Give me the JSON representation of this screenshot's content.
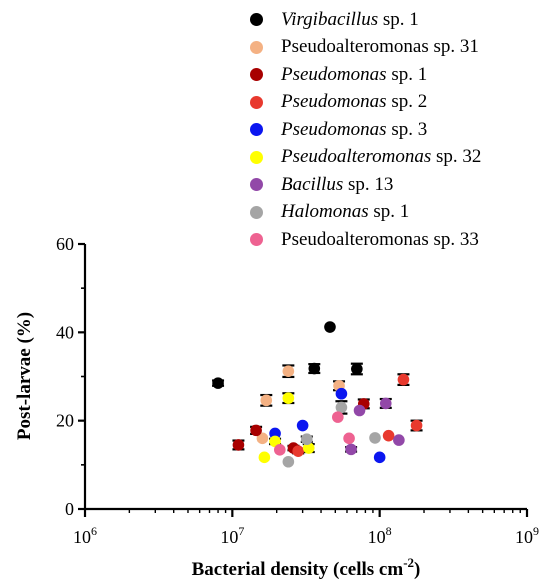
{
  "chart_data": {
    "type": "scatter",
    "xlabel": "Bacterial density (cells cm",
    "xlabel_sup": "-2",
    "xlabel_close": ")",
    "ylabel": "Post-larvae  (%)",
    "x_scale": "log",
    "xlim": [
      1000000,
      1000000000
    ],
    "ylim": [
      0,
      60
    ],
    "yticks": [
      0,
      20,
      40,
      60
    ],
    "ytick_labels": [
      "0",
      "20",
      "40",
      "60"
    ],
    "xtick_labels": [
      {
        "base": "10",
        "exp": "6"
      },
      {
        "base": "10",
        "exp": "7"
      },
      {
        "base": "10",
        "exp": "8"
      },
      {
        "base": "10",
        "exp": "9"
      }
    ],
    "grid": false,
    "legend_position": "top-right",
    "series": [
      {
        "name": "Virgibacillus",
        "name_suffix": " sp. 1",
        "italic": true,
        "color": "#000000",
        "points": [
          [
            8000000,
            28.5,
            0.6
          ],
          [
            36000000,
            31.8,
            1.0
          ],
          [
            46000000,
            41.2,
            0
          ],
          [
            70000000,
            31.7,
            1.2
          ]
        ]
      },
      {
        "name": "Pseudoalteromonas sp. 31",
        "name_suffix": "",
        "italic": false,
        "color": "#F4B183",
        "points": [
          [
            16000000,
            16.0,
            0
          ],
          [
            17000000,
            24.6,
            1.2
          ],
          [
            24000000,
            31.2,
            1.3
          ],
          [
            53000000,
            27.9,
            1.0
          ]
        ]
      },
      {
        "name": "Pseudomonas",
        "name_suffix": " sp. 1",
        "italic": true,
        "color": "#A80000",
        "points": [
          [
            11000000,
            14.5,
            1.0
          ],
          [
            14500000,
            17.8,
            0.8
          ],
          [
            26000000,
            13.8,
            0.5
          ],
          [
            78000000,
            23.8,
            1.0
          ]
        ]
      },
      {
        "name": "Pseudomonas",
        "name_suffix": " sp. 2",
        "italic": true,
        "color": "#E8392E",
        "points": [
          [
            28000000,
            13.1,
            0.5
          ],
          [
            115000000,
            16.6,
            0
          ],
          [
            145000000,
            29.3,
            1.2
          ],
          [
            178000000,
            18.9,
            1.1
          ]
        ]
      },
      {
        "name": "Pseudomonas",
        "name_suffix": " sp. 3",
        "italic": true,
        "color": "#0B16F0",
        "points": [
          [
            19500000,
            17.1,
            0
          ],
          [
            30000000,
            18.9,
            0
          ],
          [
            55000000,
            26.1,
            0
          ],
          [
            100000000,
            11.7,
            0
          ]
        ]
      },
      {
        "name": "Pseudoalteromonas",
        "name_suffix": " sp. 32",
        "italic": true,
        "color": "#FFFF00",
        "points": [
          [
            16500000,
            11.7,
            0
          ],
          [
            19500000,
            15.3,
            0.6
          ],
          [
            24000000,
            25.1,
            1.1
          ],
          [
            33000000,
            13.8,
            0.9
          ]
        ]
      },
      {
        "name": "Bacillus",
        "name_suffix": " sp. 13",
        "italic": true,
        "color": "#9248A8",
        "points": [
          [
            64000000,
            13.5,
            0.5
          ],
          [
            73000000,
            22.3,
            0
          ],
          [
            110000000,
            23.9,
            1.0
          ],
          [
            135000000,
            15.6,
            0
          ]
        ]
      },
      {
        "name": "Halomonas",
        "name_suffix": " sp. 1",
        "italic": true,
        "color": "#A5A5A5",
        "points": [
          [
            24000000,
            10.7,
            0
          ],
          [
            32000000,
            15.8,
            0.6
          ],
          [
            55000000,
            23.0,
            1.4
          ],
          [
            93000000,
            16.1,
            0
          ]
        ]
      },
      {
        "name": "Pseudoalteromonas sp. 33",
        "name_suffix": "",
        "italic": false,
        "color": "#EE6291",
        "points": [
          [
            21000000,
            13.4,
            0
          ],
          [
            52000000,
            20.8,
            0
          ],
          [
            62000000,
            16.0,
            0
          ]
        ]
      }
    ]
  }
}
